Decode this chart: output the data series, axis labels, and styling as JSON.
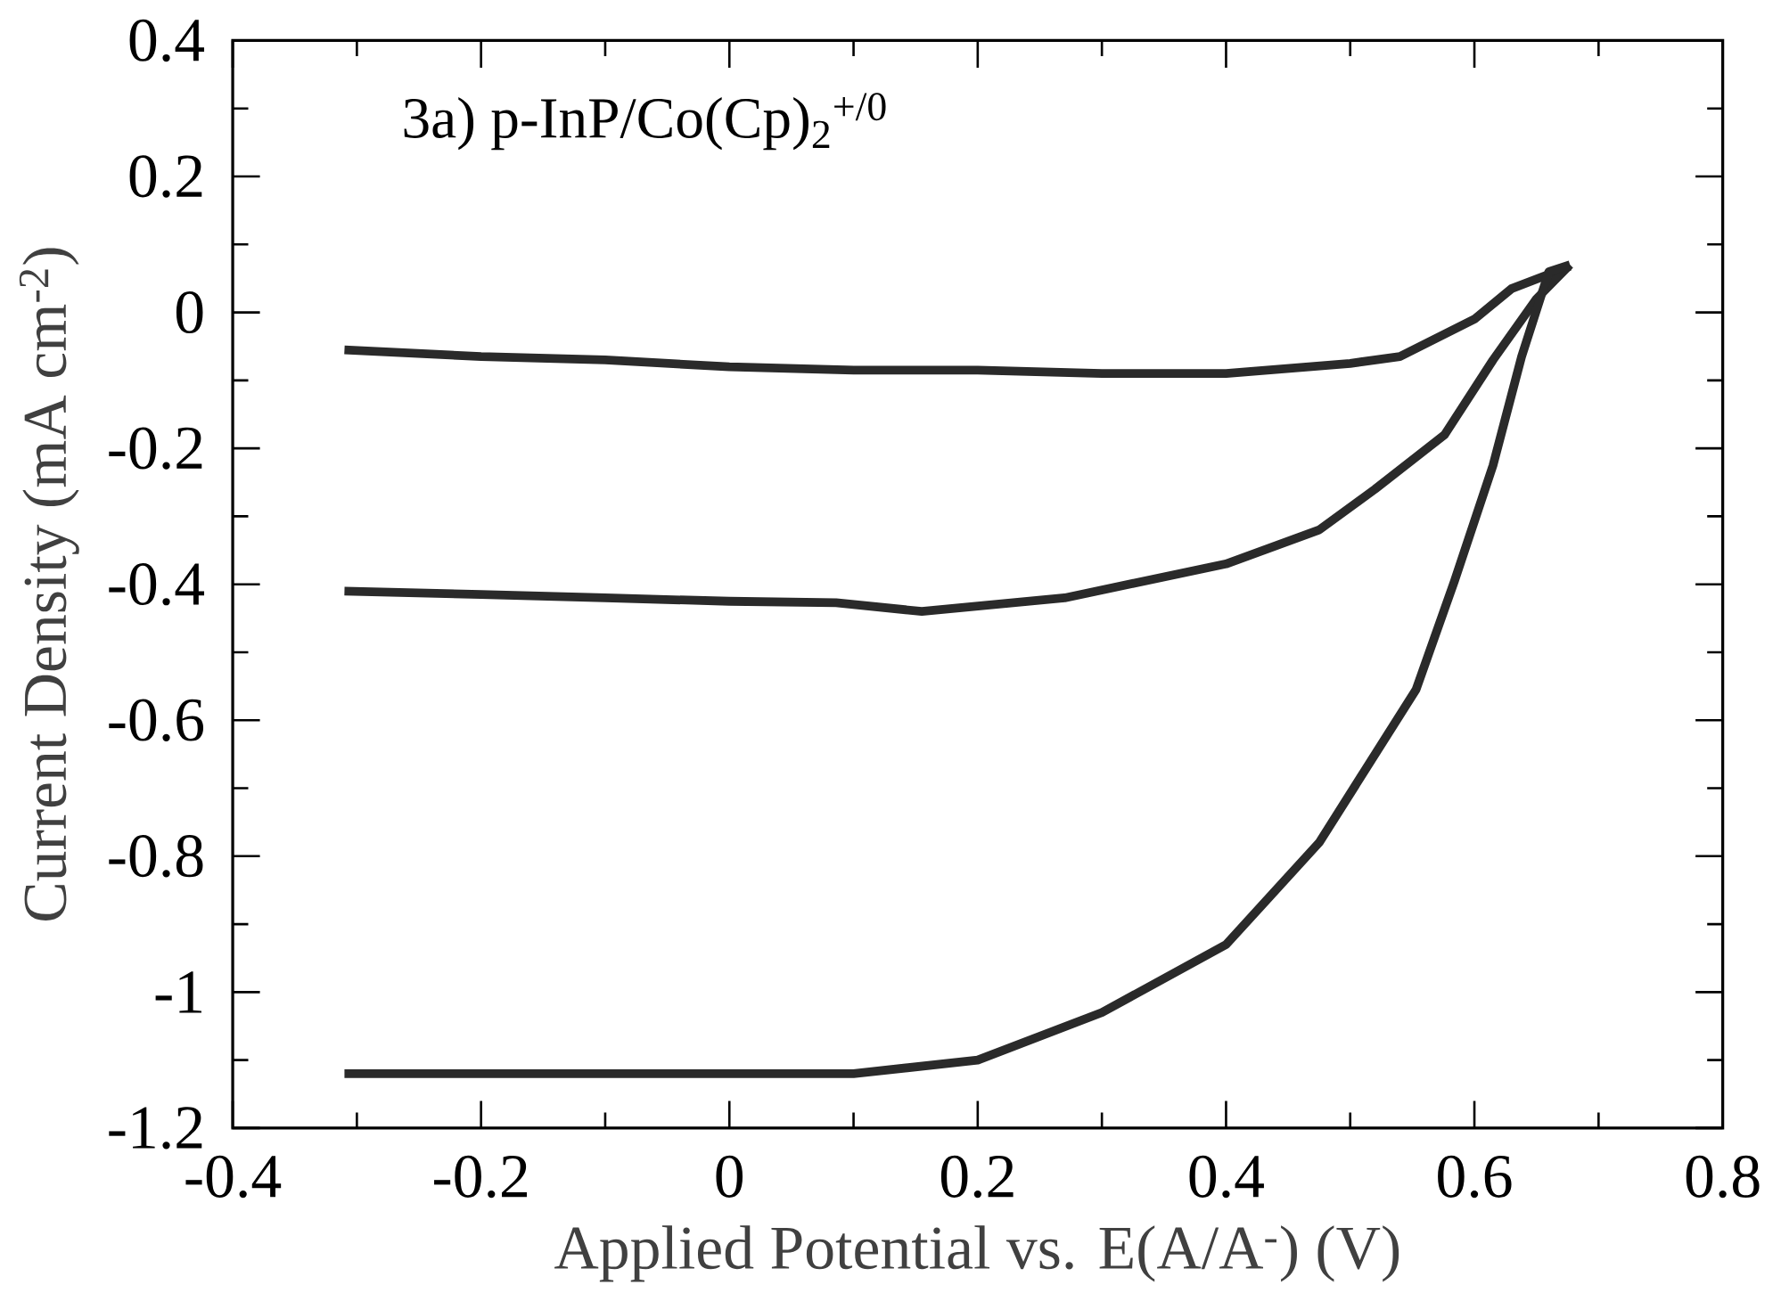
{
  "chart_data": {
    "type": "line",
    "xlabel": "Applied Potential vs. E(A/A$^{-}$) (V)",
    "ylabel": "Current Density (mA cm$^{-2}$)",
    "annotations": [
      "3a) p-InP/Co(Cp)$_{2}$$^{+/0}$"
    ],
    "xlim": [
      -0.4,
      0.8
    ],
    "ylim": [
      -1.2,
      0.4
    ],
    "xticks": [
      -0.4,
      -0.2,
      0,
      0.2,
      0.4,
      0.6,
      0.8
    ],
    "yticks": [
      -1.2,
      -1,
      -0.8,
      -0.6,
      -0.4,
      -0.2,
      0,
      0.2,
      0.4
    ],
    "grid": false,
    "marker": "none",
    "line_style": "solid",
    "series": [
      {
        "color": "#2a2a2a",
        "x": [
          -0.31,
          -0.2,
          -0.1,
          0,
          0.1,
          0.2,
          0.3,
          0.4,
          0.5,
          0.54,
          0.6,
          0.63,
          0.677
        ],
        "values": [
          -0.055,
          -0.065,
          -0.07,
          -0.08,
          -0.085,
          -0.085,
          -0.09,
          -0.09,
          -0.075,
          -0.065,
          -0.01,
          0.035,
          0.068
        ]
      },
      {
        "color": "#2a2a2a",
        "x": [
          -0.31,
          -0.2,
          -0.1,
          0,
          0.086,
          0.155,
          0.27,
          0.4,
          0.475,
          0.52,
          0.576,
          0.615,
          0.65,
          0.677
        ],
        "values": [
          -0.41,
          -0.415,
          -0.42,
          -0.425,
          -0.427,
          -0.44,
          -0.42,
          -0.37,
          -0.32,
          -0.26,
          -0.18,
          -0.07,
          0.02,
          0.07
        ]
      },
      {
        "color": "#2a2a2a",
        "x": [
          -0.31,
          -0.2,
          -0.1,
          0,
          0.1,
          0.2,
          0.3,
          0.4,
          0.475,
          0.553,
          0.584,
          0.615,
          0.638,
          0.66,
          0.677
        ],
        "values": [
          -1.12,
          -1.12,
          -1.12,
          -1.12,
          -1.12,
          -1.1,
          -1.03,
          -0.93,
          -0.78,
          -0.555,
          -0.395,
          -0.225,
          -0.065,
          0.06,
          0.07
        ]
      }
    ]
  }
}
